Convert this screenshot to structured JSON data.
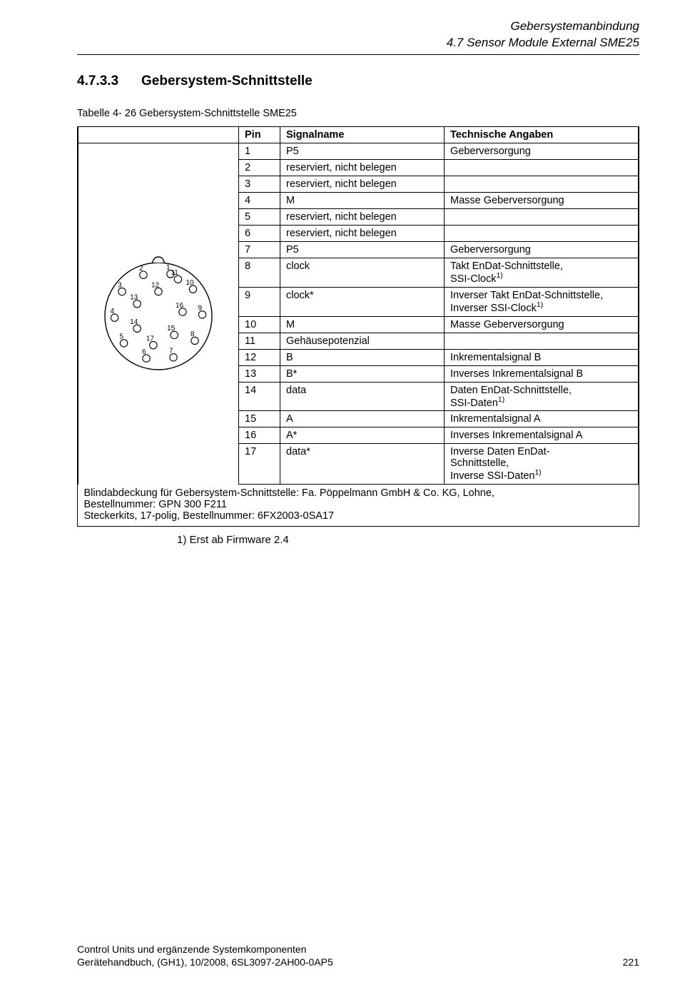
{
  "header": {
    "line1": "Gebersystemanbindung",
    "line2": "4.7 Sensor Module External SME25"
  },
  "section": {
    "number": "4.7.3.3",
    "title": "Gebersystem-Schnittstelle"
  },
  "tableCaption": "Tabelle 4- 26  Gebersystem-Schnittstelle SME25",
  "columns": {
    "c1": "Pin",
    "c2": "Signalname",
    "c3": "Technische Angaben"
  },
  "rows": [
    {
      "pin": "1",
      "sig": "P5",
      "desc": "Geberversorgung"
    },
    {
      "pin": "2",
      "sig": "reserviert, nicht belegen",
      "desc": ""
    },
    {
      "pin": "3",
      "sig": "reserviert, nicht belegen",
      "desc": ""
    },
    {
      "pin": "4",
      "sig": "M",
      "desc": "Masse Geberversorgung"
    },
    {
      "pin": "5",
      "sig": "reserviert, nicht belegen",
      "desc": ""
    },
    {
      "pin": "6",
      "sig": "reserviert, nicht belegen",
      "desc": ""
    },
    {
      "pin": "7",
      "sig": "P5",
      "desc": "Geberversorgung"
    },
    {
      "pin": "8",
      "sig": "clock",
      "desc": "Takt EnDat-Schnittstelle,\nSSI-Clock",
      "sup": "1)"
    },
    {
      "pin": "9",
      "sig": "clock*",
      "desc": "Inverser Takt EnDat-Schnittstelle,\nInverser SSI-Clock",
      "sup": "1)"
    },
    {
      "pin": "10",
      "sig": "M",
      "desc": "Masse Geberversorgung"
    },
    {
      "pin": "11",
      "sig": "Gehäusepotenzial",
      "desc": ""
    },
    {
      "pin": "12",
      "sig": "B",
      "desc": "Inkrementalsignal B"
    },
    {
      "pin": "13",
      "sig": "B*",
      "desc": "Inverses Inkrementalsignal B"
    },
    {
      "pin": "14",
      "sig": "data",
      "desc": "Daten EnDat-Schnittstelle,\nSSI-Daten",
      "sup": "1)"
    },
    {
      "pin": "15",
      "sig": "A",
      "desc": "Inkrementalsignal A"
    },
    {
      "pin": "16",
      "sig": "A*",
      "desc": "Inverses Inkrementalsignal A"
    },
    {
      "pin": "17",
      "sig": "data*",
      "desc": "Inverse Daten EnDat-\nSchnittstelle,\nInverse SSI-Daten",
      "sup": "1)"
    }
  ],
  "tableFooter": "Blindabdeckung für Gebersystem-Schnittstelle: Fa. Pöppelmann GmbH & Co. KG, Lohne,\nBestellnummer: GPN 300 F211\nSteckerkits, 17-polig, Bestellnummer: 6FX2003-0SA17",
  "postNote": "1) Erst ab Firmware 2.4",
  "footer": {
    "line1": "Control Units und ergänzende Systemkomponenten",
    "line2": "Gerätehandbuch, (GH1), 10/2008, 6SL3097-2AH00-0AP5",
    "pagenum": "221"
  },
  "connector": {
    "outerRadius": 75,
    "pinRadius": 5.2,
    "labelFont": 10,
    "stroke": "#000000",
    "outerPins": [
      {
        "n": "1",
        "angDeg": 74
      },
      {
        "n": "2",
        "angDeg": 110
      },
      {
        "n": "3",
        "angDeg": 146
      },
      {
        "n": "4",
        "angDeg": 182
      },
      {
        "n": "5",
        "angDeg": 218
      },
      {
        "n": "6",
        "angDeg": 254
      },
      {
        "n": "7",
        "angDeg": 290
      },
      {
        "n": "8",
        "angDeg": 326
      },
      {
        "n": "9",
        "angDeg": 2
      },
      {
        "n": "10",
        "angDeg": 38
      },
      {
        "n": "11",
        "angDeg": 62,
        "rFactor": 0.78
      }
    ],
    "innerPins": [
      {
        "n": "12",
        "angDeg": 90
      },
      {
        "n": "13",
        "angDeg": 150
      },
      {
        "n": "14",
        "angDeg": 210
      },
      {
        "n": "15",
        "angDeg": 310
      },
      {
        "n": "16",
        "angDeg": 10
      },
      {
        "n": "17",
        "angDeg": 260,
        "rFactor": 0.55
      }
    ],
    "outerRingFactor": 0.82,
    "innerRingFactor": 0.46
  }
}
